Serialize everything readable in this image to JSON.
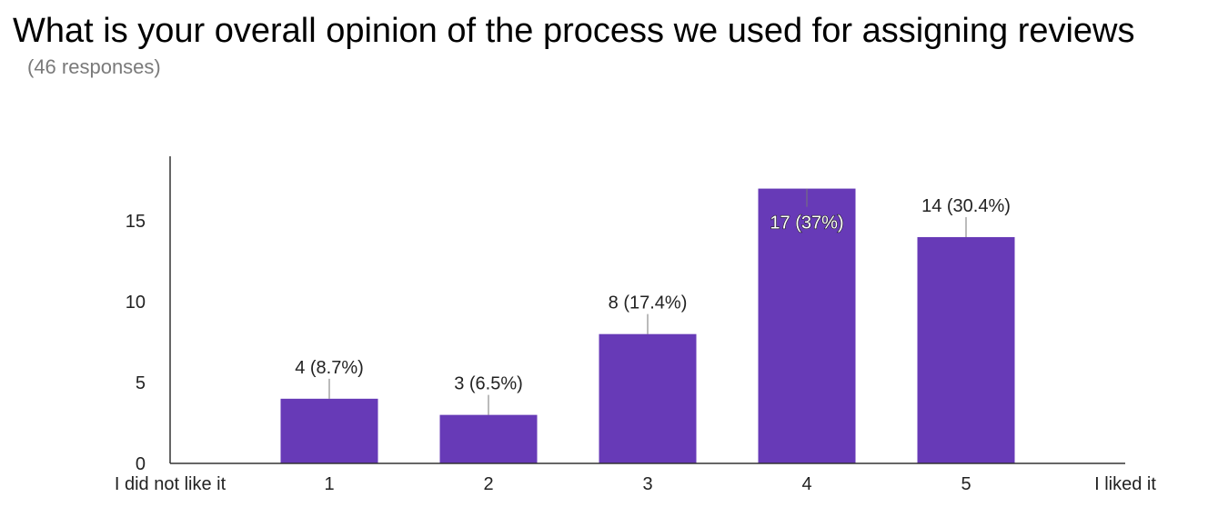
{
  "header": {
    "title": "What is your overall opinion of the process we used for assigning reviews",
    "subtitle": "(46 responses)"
  },
  "colors": {
    "bar": "#673ab7",
    "axis": "#333333",
    "text": "#222222"
  },
  "chart_data": {
    "type": "bar",
    "title": "What is your overall opinion of the process we used for assigning reviews",
    "subtitle": "(46 responses)",
    "categories": [
      "1",
      "2",
      "3",
      "4",
      "5"
    ],
    "values": [
      4,
      3,
      8,
      17,
      14
    ],
    "data_labels": [
      "4 (8.7%)",
      "3 (6.5%)",
      "8 (17.4%)",
      "17 (37%)",
      "14 (30.4%)"
    ],
    "x_range_labels": {
      "low": "I did not like it",
      "high": "I liked it"
    },
    "yticks": [
      0,
      5,
      10,
      15
    ],
    "ylim": [
      0,
      19
    ],
    "grid": false,
    "legend": "none"
  }
}
